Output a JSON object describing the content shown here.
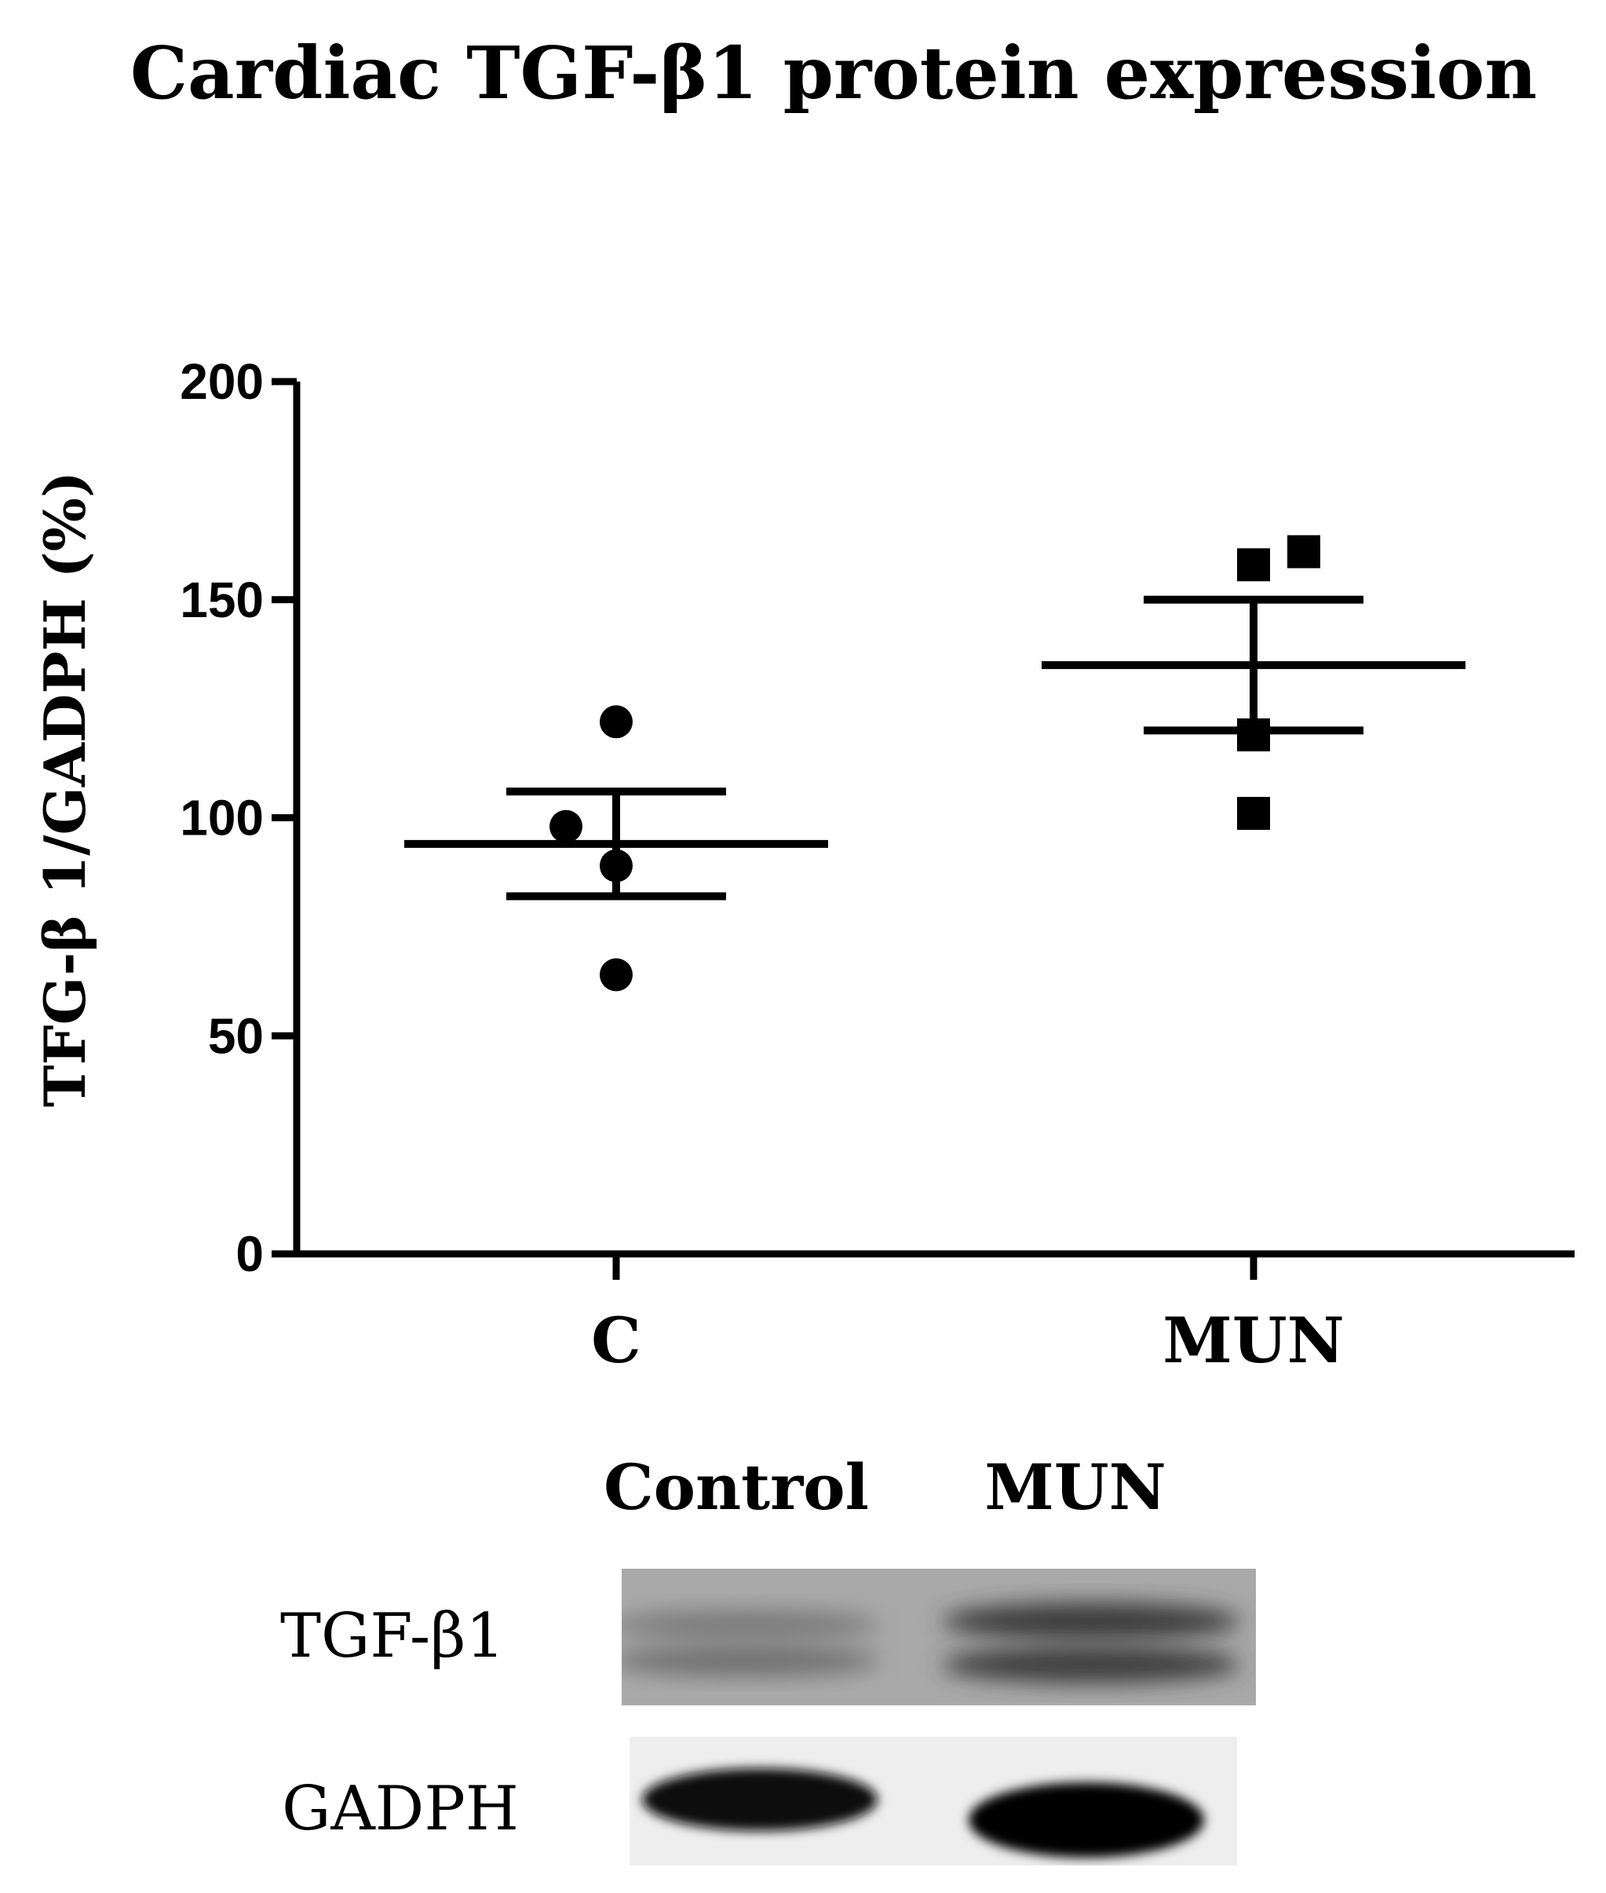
{
  "chart_data": {
    "type": "scatter",
    "title": "Cardiac TGF-β1 protein expression",
    "xlabel": "",
    "ylabel": "TFG-β 1/GADPH (%)",
    "ylim": [
      0,
      200
    ],
    "yticks": [
      "0",
      "50",
      "100",
      "150",
      "200"
    ],
    "categories": [
      "C",
      "MUN"
    ],
    "series": [
      {
        "category": "C",
        "marker": "circle",
        "points": [
          122,
          98,
          89,
          64
        ],
        "mean": 94,
        "sem": [
          82,
          106
        ]
      },
      {
        "category": "MUN",
        "marker": "square",
        "points": [
          158,
          161,
          119,
          101
        ],
        "mean": 135,
        "sem": [
          120,
          150
        ]
      }
    ],
    "grid": false,
    "legend": "none"
  },
  "blot": {
    "lane_labels": [
      "Control",
      "MUN"
    ],
    "band_labels": [
      "TGF-β1",
      "GADPH"
    ]
  }
}
